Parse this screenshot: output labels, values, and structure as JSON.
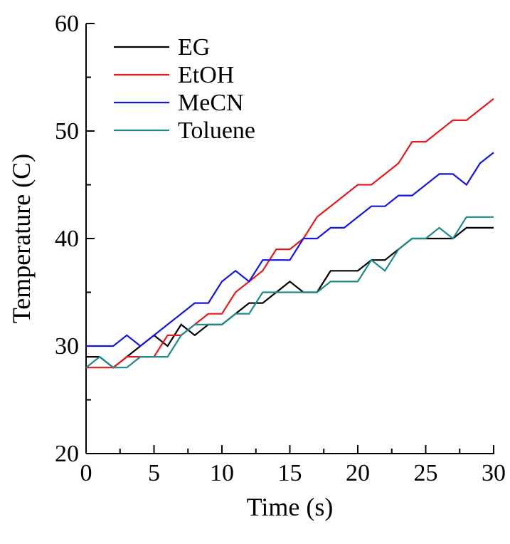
{
  "chart_data": {
    "type": "line",
    "title": "",
    "xlabel": "Time (s)",
    "ylabel": "Temperature (C)",
    "xlim": [
      0,
      30
    ],
    "ylim": [
      20,
      60
    ],
    "x_ticks": [
      0,
      5,
      10,
      15,
      20,
      25,
      30
    ],
    "y_ticks": [
      20,
      30,
      40,
      50,
      60
    ],
    "x_tick_labels": [
      "0",
      "5",
      "10",
      "15",
      "20",
      "25",
      "30"
    ],
    "y_tick_labels": [
      "20",
      "30",
      "40",
      "50",
      "60"
    ],
    "grid": false,
    "legend_position": "top-left",
    "x": [
      0,
      1,
      2,
      3,
      4,
      5,
      6,
      7,
      8,
      9,
      10,
      11,
      12,
      13,
      14,
      15,
      16,
      17,
      18,
      19,
      20,
      21,
      22,
      23,
      24,
      25,
      26,
      27,
      28,
      29,
      30
    ],
    "series": [
      {
        "name": "EG",
        "color": "#000000",
        "values": [
          29,
          29,
          28,
          29,
          30,
          31,
          30,
          32,
          31,
          32,
          32,
          33,
          34,
          34,
          35,
          36,
          35,
          35,
          37,
          37,
          37,
          38,
          38,
          39,
          40,
          40,
          40,
          40,
          41,
          41,
          41
        ]
      },
      {
        "name": "EtOH",
        "color": "#e41a1c",
        "values": [
          28,
          28,
          28,
          29,
          29,
          29,
          31,
          31,
          32,
          33,
          33,
          35,
          36,
          37,
          39,
          39,
          40,
          42,
          43,
          44,
          45,
          45,
          46,
          47,
          49,
          49,
          50,
          51,
          51,
          52,
          53
        ]
      },
      {
        "name": "MeCN",
        "color": "#1515e0",
        "values": [
          30,
          30,
          30,
          31,
          30,
          31,
          32,
          33,
          34,
          34,
          36,
          37,
          36,
          38,
          38,
          38,
          40,
          40,
          41,
          41,
          42,
          43,
          43,
          44,
          44,
          45,
          46,
          46,
          45,
          47,
          48
        ]
      },
      {
        "name": "Toluene",
        "color": "#1e8a8a",
        "values": [
          28,
          29,
          28,
          28,
          29,
          29,
          29,
          31,
          32,
          32,
          32,
          33,
          33,
          35,
          35,
          35,
          35,
          35,
          36,
          36,
          36,
          38,
          37,
          39,
          40,
          40,
          41,
          40,
          42,
          42,
          42
        ]
      }
    ]
  }
}
